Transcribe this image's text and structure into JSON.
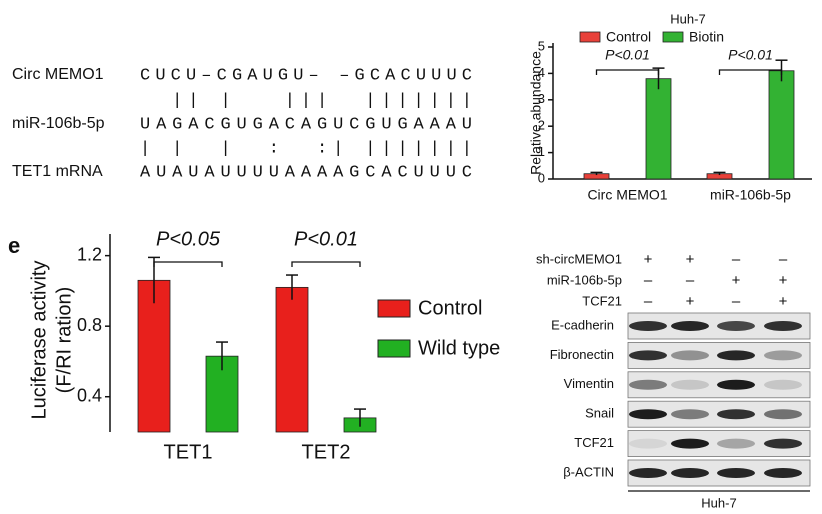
{
  "alignment": {
    "labels": [
      "Circ MEMO1",
      "miR-106b-5p",
      "TET1 mRNA"
    ],
    "sequences": [
      "CUCU–CGAUGU– –GCACUUUC",
      "UAGACGUGACAGUCGUGAAAU",
      "AUAUAUUUUAAAAGCACUUUC"
    ],
    "pairings": [
      "  || |   |||  |||||||",
      "| |  |  :  :| |||||||"
    ]
  },
  "chart_data": [
    {
      "type": "bar",
      "title": "Huh-7",
      "y_label": "Relative  abundance",
      "categories": [
        "Circ MEMO1",
        "miR-106b-5p"
      ],
      "series": [
        {
          "name": "Control",
          "color": "#e8413a",
          "values": [
            0.2,
            0.2
          ],
          "errors": [
            0.05,
            0.05
          ]
        },
        {
          "name": "Biotin",
          "color": "#33b233",
          "values": [
            3.8,
            4.1
          ],
          "errors": [
            0.4,
            0.4
          ]
        }
      ],
      "ylim": [
        0,
        5
      ],
      "yticks": [
        0,
        1,
        2,
        3,
        4,
        5
      ],
      "annotations": [
        "P<0.01",
        "P<0.01"
      ],
      "legend": "top"
    },
    {
      "type": "bar",
      "panel_label": "e",
      "y_label": [
        "Luciferase activity",
        "(F/RI ration)"
      ],
      "categories": [
        "TET1",
        "TET2"
      ],
      "series": [
        {
          "name": "Control",
          "color": "#e8201c",
          "values": [
            1.06,
            1.02
          ],
          "errors": [
            0.13,
            0.07
          ]
        },
        {
          "name": "Wild type",
          "color": "#22b022",
          "values": [
            0.63,
            0.28
          ],
          "errors": [
            0.08,
            0.05
          ]
        }
      ],
      "ylim": [
        0.2,
        1.3
      ],
      "yticks": [
        0.4,
        0.8,
        1.2
      ],
      "annotations": [
        "P<0.05",
        "P<0.01"
      ],
      "legend": "right"
    }
  ],
  "blot": {
    "conditions": [
      {
        "label": "sh-circMEMO1",
        "signs": [
          "+",
          "+",
          "–",
          "–"
        ]
      },
      {
        "label": "miR-106b-5p",
        "signs": [
          "–",
          "–",
          "+",
          "+"
        ]
      },
      {
        "label": "TCF21",
        "signs": [
          "–",
          "+",
          "–",
          "+"
        ]
      }
    ],
    "proteins": [
      "E-cadherin",
      "Fibronectin",
      "Vimentin",
      "Snail",
      "TCF21",
      "β-ACTIN"
    ],
    "cell_line": "Huh-7"
  }
}
